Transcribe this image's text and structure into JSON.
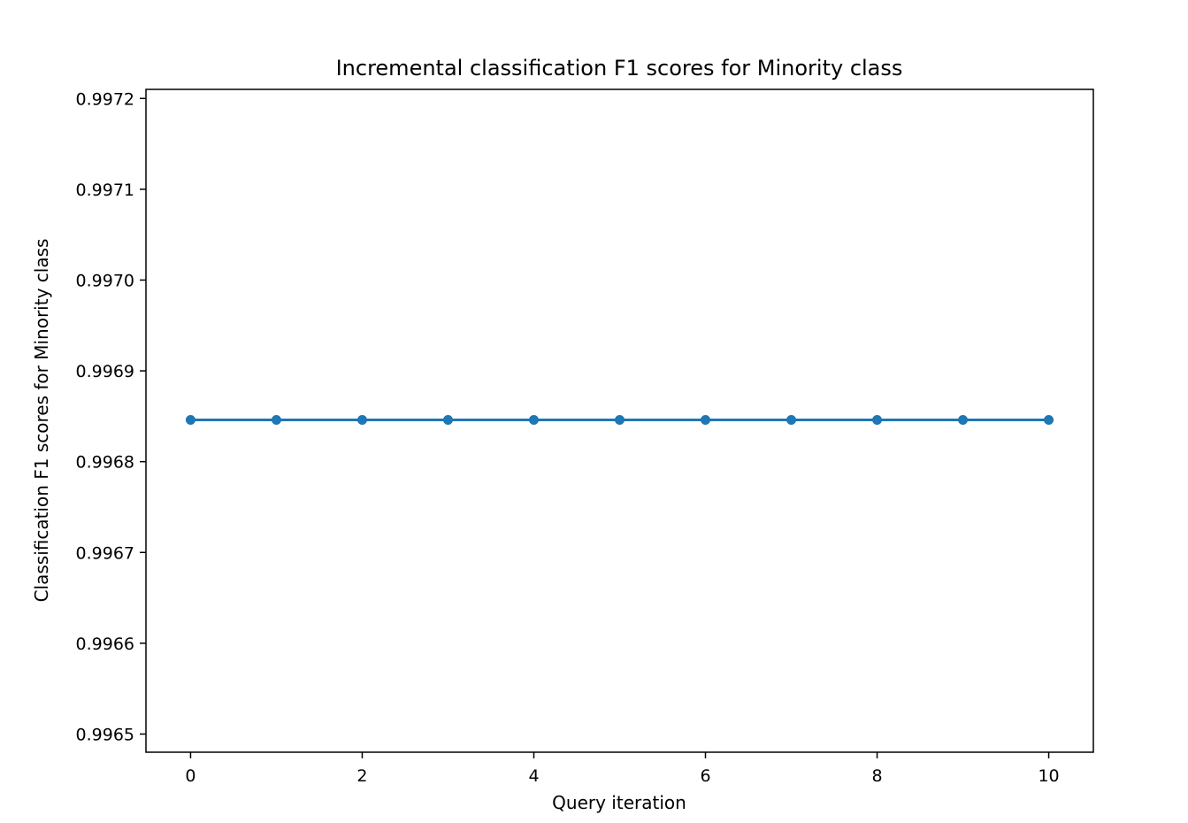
{
  "chart_data": {
    "type": "line",
    "title": "Incremental classification F1 scores for Minority class",
    "xlabel": "Query iteration",
    "ylabel": "Classification F1 scores for Minority class",
    "x": [
      0,
      1,
      2,
      3,
      4,
      5,
      6,
      7,
      8,
      9,
      10
    ],
    "series": [
      {
        "values": [
          0.996846,
          0.996846,
          0.996846,
          0.996846,
          0.996846,
          0.996846,
          0.996846,
          0.996846,
          0.996846,
          0.996846,
          0.996846
        ],
        "color": "#1f77b4",
        "marker": "circle"
      }
    ],
    "xlim": [
      -0.52,
      10.52
    ],
    "ylim": [
      0.99648,
      0.99721
    ],
    "x_ticks": [
      0,
      2,
      4,
      6,
      8,
      10
    ],
    "x_tick_labels": [
      "0",
      "2",
      "4",
      "6",
      "8",
      "10"
    ],
    "y_ticks": [
      0.9965,
      0.9966,
      0.9967,
      0.9968,
      0.9969,
      0.997,
      0.9971,
      0.9972
    ],
    "y_tick_labels": [
      "0.9965",
      "0.9966",
      "0.9967",
      "0.9968",
      "0.9969",
      "0.9970",
      "0.9971",
      "0.9972"
    ],
    "grid": false,
    "legend": "none"
  }
}
